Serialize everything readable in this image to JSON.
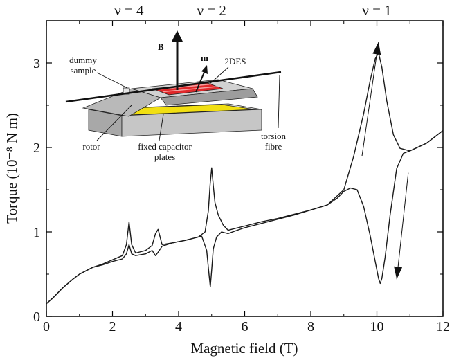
{
  "chart_data": {
    "type": "line",
    "xlabel": "Magnetic field (T)",
    "ylabel": "Torque (10⁻⁸ N m)",
    "xlim": [
      0,
      12
    ],
    "ylim": [
      0,
      3.5
    ],
    "x_ticks": [
      "0",
      "2",
      "4",
      "6",
      "8",
      "10",
      "12"
    ],
    "y_ticks": [
      "0",
      "1",
      "2",
      "3"
    ],
    "grid": false,
    "top_annotations": [
      {
        "text": "ν = 4",
        "x": 2.5
      },
      {
        "text": "ν = 2",
        "x": 5.0
      },
      {
        "text": "ν = 1",
        "x": 10.0
      }
    ],
    "series": [
      {
        "direction": "up-sweep",
        "x": [
          0,
          0.2,
          0.5,
          0.8,
          1.0,
          1.4,
          1.7,
          2.0,
          2.3,
          2.42,
          2.5,
          2.58,
          2.7,
          3.0,
          3.2,
          3.3,
          3.38,
          3.5,
          3.8,
          4.2,
          4.6,
          4.8,
          4.9,
          4.95,
          5.0,
          5.05,
          5.1,
          5.2,
          5.35,
          5.5,
          5.7,
          6.0,
          6.5,
          7.0,
          7.5,
          8.0,
          8.5,
          9.0,
          9.3,
          9.6,
          9.8,
          9.95,
          10.05,
          10.15,
          10.3,
          10.5,
          10.7,
          11.0,
          11.5,
          12.0
        ],
        "y": [
          0.15,
          0.22,
          0.34,
          0.44,
          0.5,
          0.58,
          0.62,
          0.67,
          0.72,
          0.85,
          1.12,
          0.85,
          0.75,
          0.78,
          0.84,
          0.98,
          1.03,
          0.85,
          0.87,
          0.9,
          0.94,
          1.0,
          1.25,
          1.55,
          1.76,
          1.55,
          1.35,
          1.2,
          1.08,
          1.02,
          1.04,
          1.07,
          1.12,
          1.16,
          1.21,
          1.26,
          1.32,
          1.5,
          1.9,
          2.4,
          2.8,
          3.05,
          3.12,
          2.95,
          2.55,
          2.15,
          1.99,
          1.96,
          2.05,
          2.2
        ]
      },
      {
        "direction": "down-sweep",
        "x": [
          12.0,
          11.5,
          11.0,
          10.8,
          10.6,
          10.4,
          10.25,
          10.15,
          10.1,
          10.05,
          9.95,
          9.8,
          9.6,
          9.4,
          9.2,
          9.0,
          8.8,
          8.5,
          8.0,
          7.5,
          7.0,
          6.5,
          6.0,
          5.7,
          5.5,
          5.3,
          5.15,
          5.05,
          5.0,
          4.96,
          4.92,
          4.85,
          4.7,
          4.5,
          4.2,
          3.8,
          3.5,
          3.38,
          3.3,
          3.2,
          3.0,
          2.7,
          2.58,
          2.5,
          2.42,
          2.3,
          2.0,
          1.7,
          1.4,
          1.0,
          0.8,
          0.5,
          0.2,
          0.0
        ],
        "y": [
          2.2,
          2.05,
          1.96,
          1.93,
          1.75,
          1.2,
          0.7,
          0.45,
          0.39,
          0.45,
          0.65,
          0.95,
          1.3,
          1.5,
          1.52,
          1.48,
          1.4,
          1.32,
          1.26,
          1.2,
          1.15,
          1.1,
          1.05,
          1.01,
          0.98,
          1.0,
          0.94,
          0.8,
          0.55,
          0.35,
          0.5,
          0.78,
          0.95,
          0.93,
          0.9,
          0.87,
          0.83,
          0.76,
          0.72,
          0.78,
          0.74,
          0.72,
          0.74,
          0.85,
          0.74,
          0.68,
          0.65,
          0.61,
          0.58,
          0.5,
          0.44,
          0.34,
          0.22,
          0.15
        ]
      }
    ],
    "arrows": [
      {
        "direction": "up",
        "from": [
          9.55,
          1.9
        ],
        "to": [
          10.05,
          3.25
        ]
      },
      {
        "direction": "down",
        "from": [
          10.95,
          1.7
        ],
        "to": [
          10.6,
          0.44
        ]
      }
    ]
  },
  "inset": {
    "labels": {
      "dummy": "dummy",
      "sample": "sample",
      "B": "B",
      "m": "m",
      "twoDES": "2DES",
      "rotor": "rotor",
      "fixed": "fixed capacitor",
      "plates": "plates",
      "torsion": "torsion",
      "fibre": "fibre"
    },
    "colors": {
      "capacitor": "#f1df12",
      "twoDES": "#e0282a",
      "block": "#cfcfcf",
      "roof": "#b9b9b9"
    }
  },
  "colors": {
    "curve": "#1a1a1a",
    "axis": "#000000"
  }
}
